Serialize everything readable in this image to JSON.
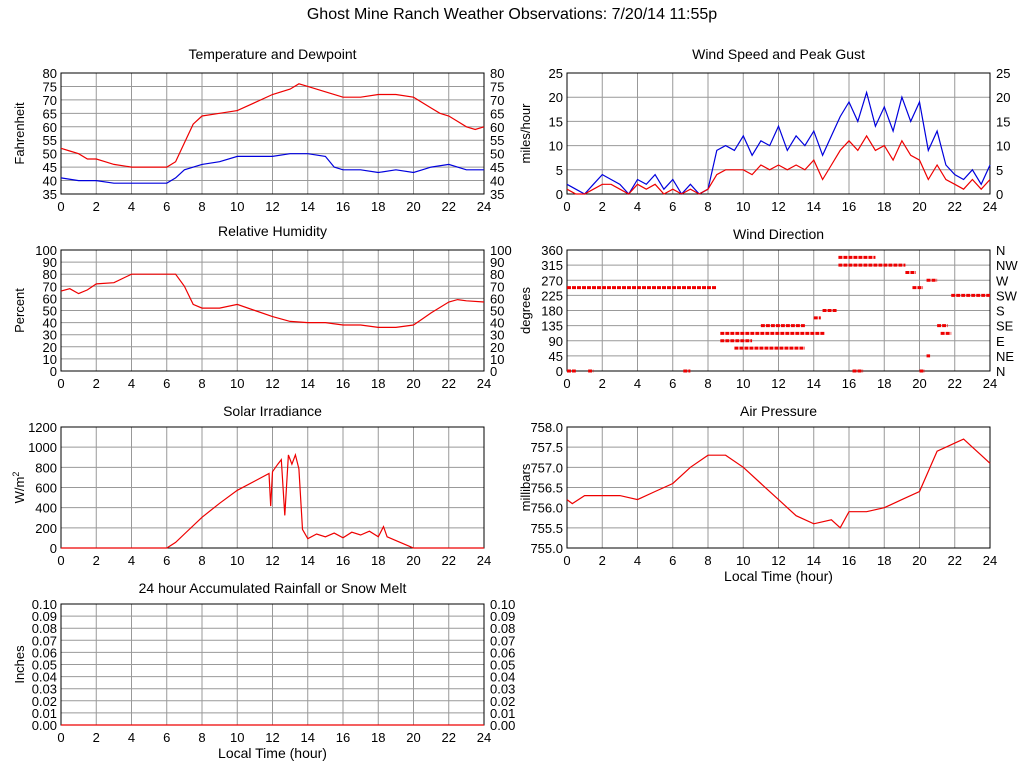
{
  "page_title": "Ghost Mine Ranch Weather Observations: 7/20/14 11:55p",
  "colors": {
    "red": "#ee0000",
    "blue": "#0000dd",
    "grid": "#999999",
    "axis": "#000000"
  },
  "chart_data": [
    {
      "id": "temp",
      "type": "line",
      "title": "Temperature and Dewpoint",
      "ylabel": "Fahrenheit",
      "xlabel": "",
      "ylim": [
        35,
        80
      ],
      "yticks": [
        "35",
        "40",
        "45",
        "50",
        "55",
        "60",
        "65",
        "70",
        "75",
        "80"
      ],
      "right_ticks": true,
      "xticks": [
        "0",
        "2",
        "4",
        "6",
        "8",
        "10",
        "12",
        "14",
        "16",
        "18",
        "20",
        "22",
        "24"
      ],
      "series": [
        {
          "color": "#ee0000",
          "x": [
            0,
            0.5,
            1,
            1.5,
            2,
            2.5,
            3,
            4,
            5,
            6,
            6.5,
            7,
            7.5,
            8,
            9,
            10,
            11,
            12,
            13,
            13.5,
            14,
            15,
            16,
            17,
            18,
            19,
            20,
            21,
            21.5,
            22,
            22.5,
            23,
            23.5,
            24
          ],
          "y": [
            52,
            51,
            50,
            48,
            48,
            47,
            46,
            45,
            45,
            45,
            47,
            54,
            61,
            64,
            65,
            66,
            69,
            72,
            74,
            76,
            75,
            73,
            71,
            71,
            72,
            72,
            71,
            67,
            65,
            64,
            62,
            60,
            59,
            60
          ]
        },
        {
          "color": "#0000dd",
          "x": [
            0,
            1,
            2,
            3,
            4,
            5,
            6,
            6.5,
            7,
            8,
            9,
            10,
            11,
            12,
            13,
            14,
            15,
            15.5,
            16,
            17,
            18,
            19,
            20,
            20.5,
            21,
            22,
            23,
            24
          ],
          "y": [
            41,
            40,
            40,
            39,
            39,
            39,
            39,
            41,
            44,
            46,
            47,
            49,
            49,
            49,
            50,
            50,
            49,
            45,
            44,
            44,
            43,
            44,
            43,
            44,
            45,
            46,
            44,
            44
          ]
        }
      ]
    },
    {
      "id": "wind",
      "type": "line",
      "title": "Wind Speed and Peak Gust",
      "ylabel": "miles/hour",
      "xlabel": "",
      "ylim": [
        0,
        25
      ],
      "yticks": [
        "0",
        "5",
        "10",
        "15",
        "20",
        "25"
      ],
      "right_ticks": true,
      "xticks": [
        "0",
        "2",
        "4",
        "6",
        "8",
        "10",
        "12",
        "14",
        "16",
        "18",
        "20",
        "22",
        "24"
      ],
      "series": [
        {
          "color": "#0000dd",
          "x": [
            0,
            0.5,
            1,
            1.5,
            2,
            2.5,
            3,
            3.5,
            4,
            4.5,
            5,
            5.5,
            6,
            6.5,
            7,
            7.5,
            8,
            8.5,
            9,
            9.5,
            10,
            10.5,
            11,
            11.5,
            12,
            12.5,
            13,
            13.5,
            14,
            14.5,
            15,
            15.5,
            16,
            16.5,
            17,
            17.5,
            18,
            18.5,
            19,
            19.5,
            20,
            20.5,
            21,
            21.5,
            22,
            22.5,
            23,
            23.5,
            24
          ],
          "y": [
            2,
            1,
            0,
            2,
            4,
            3,
            2,
            0,
            3,
            2,
            4,
            1,
            3,
            0,
            2,
            0,
            1,
            9,
            10,
            9,
            12,
            8,
            11,
            10,
            14,
            9,
            12,
            10,
            13,
            8,
            12,
            16,
            19,
            15,
            21,
            14,
            18,
            13,
            20,
            15,
            19,
            9,
            13,
            6,
            4,
            3,
            5,
            2,
            6
          ]
        },
        {
          "color": "#ee0000",
          "x": [
            0,
            0.5,
            1,
            1.5,
            2,
            2.5,
            3,
            3.5,
            4,
            4.5,
            5,
            5.5,
            6,
            6.5,
            7,
            7.5,
            8,
            8.5,
            9,
            9.5,
            10,
            10.5,
            11,
            11.5,
            12,
            12.5,
            13,
            13.5,
            14,
            14.5,
            15,
            15.5,
            16,
            16.5,
            17,
            17.5,
            18,
            18.5,
            19,
            19.5,
            20,
            20.5,
            21,
            21.5,
            22,
            22.5,
            23,
            23.5,
            24
          ],
          "y": [
            1,
            0,
            0,
            1,
            2,
            2,
            1,
            0,
            2,
            1,
            2,
            0,
            1,
            0,
            1,
            0,
            1,
            4,
            5,
            5,
            5,
            4,
            6,
            5,
            6,
            5,
            6,
            5,
            7,
            3,
            6,
            9,
            11,
            9,
            12,
            9,
            10,
            7,
            11,
            8,
            7,
            3,
            6,
            3,
            2,
            1,
            3,
            1,
            3
          ]
        }
      ]
    },
    {
      "id": "rh",
      "type": "line",
      "title": "Relative Humidity",
      "ylabel": "Percent",
      "xlabel": "",
      "ylim": [
        0,
        100
      ],
      "yticks": [
        "0",
        "10",
        "20",
        "30",
        "40",
        "50",
        "60",
        "70",
        "80",
        "90",
        "100"
      ],
      "right_ticks": true,
      "xticks": [
        "0",
        "2",
        "4",
        "6",
        "8",
        "10",
        "12",
        "14",
        "16",
        "18",
        "20",
        "22",
        "24"
      ],
      "series": [
        {
          "color": "#ee0000",
          "x": [
            0,
            0.5,
            1,
            1.5,
            2,
            3,
            4,
            5,
            6,
            6.5,
            7,
            7.5,
            8,
            9,
            10,
            11,
            12,
            13,
            14,
            15,
            16,
            17,
            18,
            19,
            20,
            20.5,
            21,
            22,
            22.5,
            23,
            24
          ],
          "y": [
            66,
            68,
            64,
            67,
            72,
            73,
            80,
            80,
            80,
            80,
            70,
            55,
            52,
            52,
            55,
            50,
            45,
            41,
            40,
            40,
            38,
            38,
            36,
            36,
            38,
            43,
            48,
            57,
            59,
            58,
            57
          ]
        }
      ]
    },
    {
      "id": "dir",
      "type": "scatter",
      "title": "Wind Direction",
      "ylabel": "degrees",
      "xlabel": "",
      "ylim": [
        0,
        360
      ],
      "yticks": [
        "0",
        "45",
        "90",
        "135",
        "180",
        "225",
        "270",
        "315",
        "360"
      ],
      "right_labels": [
        "N",
        "NE",
        "E",
        "SE",
        "S",
        "SW",
        "W",
        "NW",
        "N"
      ],
      "xticks": [
        "0",
        "2",
        "4",
        "6",
        "8",
        "10",
        "12",
        "14",
        "16",
        "18",
        "20",
        "22",
        "24"
      ],
      "series": [
        {
          "color": "#ee0000",
          "segments": [
            [
              0,
              8.5,
              248
            ],
            [
              8.7,
              14.6,
              112
            ],
            [
              8.7,
              10.5,
              90
            ],
            [
              9.5,
              13.5,
              68
            ],
            [
              11,
              13.5,
              135
            ],
            [
              14,
              14.4,
              158
            ],
            [
              14.5,
              15.3,
              180
            ],
            [
              15.4,
              17.5,
              338
            ],
            [
              15.4,
              19.2,
              315
            ],
            [
              19.2,
              19.8,
              293
            ],
            [
              19.6,
              20.2,
              248
            ],
            [
              20.4,
              21,
              270
            ],
            [
              21,
              21.6,
              135
            ],
            [
              21.2,
              21.8,
              112
            ],
            [
              21.8,
              24,
              225
            ],
            [
              0,
              0.5,
              0
            ],
            [
              1.2,
              1.5,
              0
            ],
            [
              6.6,
              7,
              0
            ],
            [
              16.2,
              16.8,
              0
            ],
            [
              20,
              20.3,
              0
            ],
            [
              20.4,
              20.6,
              45
            ]
          ]
        }
      ]
    },
    {
      "id": "solar",
      "type": "line",
      "title": "Solar Irradiance",
      "ylabel": "W/m2",
      "xlabel": "",
      "ylim": [
        0,
        1300
      ],
      "yticks": [
        "0",
        "200",
        "400",
        "600",
        "800",
        "1000",
        "1200"
      ],
      "right_ticks": false,
      "xticks": [
        "0",
        "2",
        "4",
        "6",
        "8",
        "10",
        "12",
        "14",
        "16",
        "18",
        "20",
        "22",
        "24"
      ],
      "series": [
        {
          "color": "#ee0000",
          "x": [
            0,
            6,
            6.5,
            7,
            8,
            9,
            10,
            11,
            11.8,
            11.9,
            12,
            12.3,
            12.5,
            12.7,
            12.9,
            13.1,
            13.3,
            13.5,
            13.7,
            14,
            14.5,
            15,
            15.5,
            16,
            16.5,
            17,
            17.5,
            18,
            18.3,
            18.5,
            19,
            19.5,
            20,
            24
          ],
          "y": [
            0,
            0,
            60,
            150,
            330,
            480,
            620,
            720,
            800,
            450,
            820,
            900,
            950,
            350,
            1000,
            900,
            1000,
            850,
            200,
            100,
            150,
            120,
            160,
            110,
            170,
            140,
            180,
            120,
            230,
            120,
            80,
            40,
            0,
            0
          ]
        }
      ]
    },
    {
      "id": "pressure",
      "type": "line",
      "title": "Air Pressure",
      "ylabel": "millibars",
      "xlabel": "Local Time (hour)",
      "ylim": [
        755.0,
        758.0
      ],
      "yticks": [
        "755.0",
        "755.5",
        "756.0",
        "756.5",
        "757.0",
        "757.5",
        "758.0"
      ],
      "right_ticks": false,
      "xticks": [
        "0",
        "2",
        "4",
        "6",
        "8",
        "10",
        "12",
        "14",
        "16",
        "18",
        "20",
        "22",
        "24"
      ],
      "series": [
        {
          "color": "#ee0000",
          "x": [
            0,
            0.3,
            1,
            2,
            3,
            4,
            5,
            6,
            7,
            8,
            9,
            10,
            11,
            12,
            13,
            14,
            15,
            15.5,
            16,
            17,
            18,
            19,
            20,
            20.5,
            21,
            21.5,
            22,
            22.5,
            23,
            23.5,
            24
          ],
          "y": [
            756.2,
            756.1,
            756.3,
            756.3,
            756.3,
            756.2,
            756.4,
            756.6,
            757.0,
            757.3,
            757.3,
            757.0,
            756.6,
            756.2,
            755.8,
            755.6,
            755.7,
            755.5,
            755.9,
            755.9,
            756.0,
            756.2,
            756.4,
            756.9,
            757.4,
            757.5,
            757.6,
            757.7,
            757.5,
            757.3,
            757.1
          ]
        }
      ]
    },
    {
      "id": "rain",
      "type": "line",
      "title": "24 hour Accumulated Rainfall or Snow Melt",
      "ylabel": "Inches",
      "xlabel": "Local Time (hour)",
      "ylim": [
        0,
        0.1
      ],
      "yticks": [
        "0.00",
        "0.01",
        "0.02",
        "0.03",
        "0.04",
        "0.05",
        "0.06",
        "0.07",
        "0.08",
        "0.09",
        "0.10"
      ],
      "right_ticks": true,
      "xticks": [
        "0",
        "2",
        "4",
        "6",
        "8",
        "10",
        "12",
        "14",
        "16",
        "18",
        "20",
        "22",
        "24"
      ],
      "series": [
        {
          "color": "#ee0000",
          "x": [
            0,
            24
          ],
          "y": [
            0,
            0
          ]
        }
      ]
    }
  ]
}
